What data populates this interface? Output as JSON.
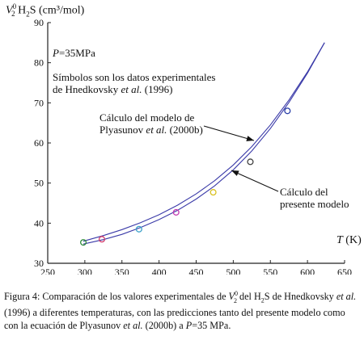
{
  "chart_data": {
    "type": "scatter",
    "xlabel_var": "T",
    "xlabel_unit": "(K)",
    "ylabel_var": "V",
    "ylabel_sup": "0",
    "ylabel_sub": "2",
    "ylabel_species": "H",
    "ylabel_species_sub": "2",
    "ylabel_species_end": "S",
    "ylabel_unit": "(cm³/mol)",
    "xlim": [
      250,
      650
    ],
    "ylim": [
      30,
      90
    ],
    "xticks": [
      "250",
      "300",
      "350",
      "400",
      "450",
      "500",
      "550",
      "600",
      "650"
    ],
    "yticks": [
      "30",
      "40",
      "50",
      "60",
      "70",
      "80",
      "90"
    ],
    "pressure_label_var": "P",
    "pressure_label_rest": "=35MPa",
    "legend_note_line1": "Símbolos son los datos experimentales",
    "legend_note_line2_a": "de Hnedkovsky ",
    "legend_note_line2_etal": "et al.",
    "legend_note_line2_b": " (1996)",
    "annotation_upper_line1": "Cálculo del modelo de",
    "annotation_upper_line2_a": "Plyasunov ",
    "annotation_upper_line2_etal": "et al.",
    "annotation_upper_line2_b": " (2000b)",
    "annotation_lower_line1": "Cálculo del",
    "annotation_lower_line2": "presente modelo",
    "series": [
      {
        "kind": "points",
        "points": [
          {
            "x": 298,
            "y": 35.2,
            "color": "#2e8b3a"
          },
          {
            "x": 323,
            "y": 36.0,
            "color": "#d23a6a"
          },
          {
            "x": 373,
            "y": 38.5,
            "color": "#3aa0c8"
          },
          {
            "x": 423,
            "y": 42.7,
            "color": "#c23ab0"
          },
          {
            "x": 473,
            "y": 47.7,
            "color": "#d8c020"
          },
          {
            "x": 523,
            "y": 55.3,
            "color": "#444444"
          },
          {
            "x": 573,
            "y": 68.0,
            "color": "#2a3fa8"
          }
        ]
      },
      {
        "kind": "line",
        "color": "#3a3aa8",
        "x": [
          298,
          325,
          350,
          375,
          400,
          425,
          450,
          475,
          500,
          525,
          550,
          575,
          600,
          623
        ],
        "y": [
          35.5,
          36.9,
          38.4,
          40.1,
          42.1,
          44.5,
          47.3,
          50.6,
          54.5,
          59.1,
          64.5,
          70.7,
          77.7,
          85.0
        ]
      },
      {
        "kind": "line",
        "color": "#3a3aa8",
        "x": [
          298,
          325,
          350,
          375,
          400,
          425,
          450,
          475,
          500,
          525,
          550,
          575,
          600,
          623
        ],
        "y": [
          34.8,
          35.9,
          37.2,
          38.9,
          40.9,
          43.2,
          46.0,
          49.3,
          53.3,
          58.0,
          63.6,
          70.1,
          77.4,
          85.0
        ]
      }
    ]
  },
  "caption": {
    "p1": "Figura 4: Comparación de los valores experimentales de ",
    "v_var": "V",
    "v_sup": "0",
    "v_sub": "2",
    "p2": " del H",
    "h2s_sub": "2",
    "p3": "S de Hnedkovsky ",
    "etal1": "et al.",
    "p4": " (1996) a diferentes temperaturas, con las predicciones tanto del presente modelo como con la ecuación de Plyasunov ",
    "etal2": "et al.",
    "p5": " (2000b) a ",
    "p_var": "P",
    "p6": "=35 MPa."
  }
}
